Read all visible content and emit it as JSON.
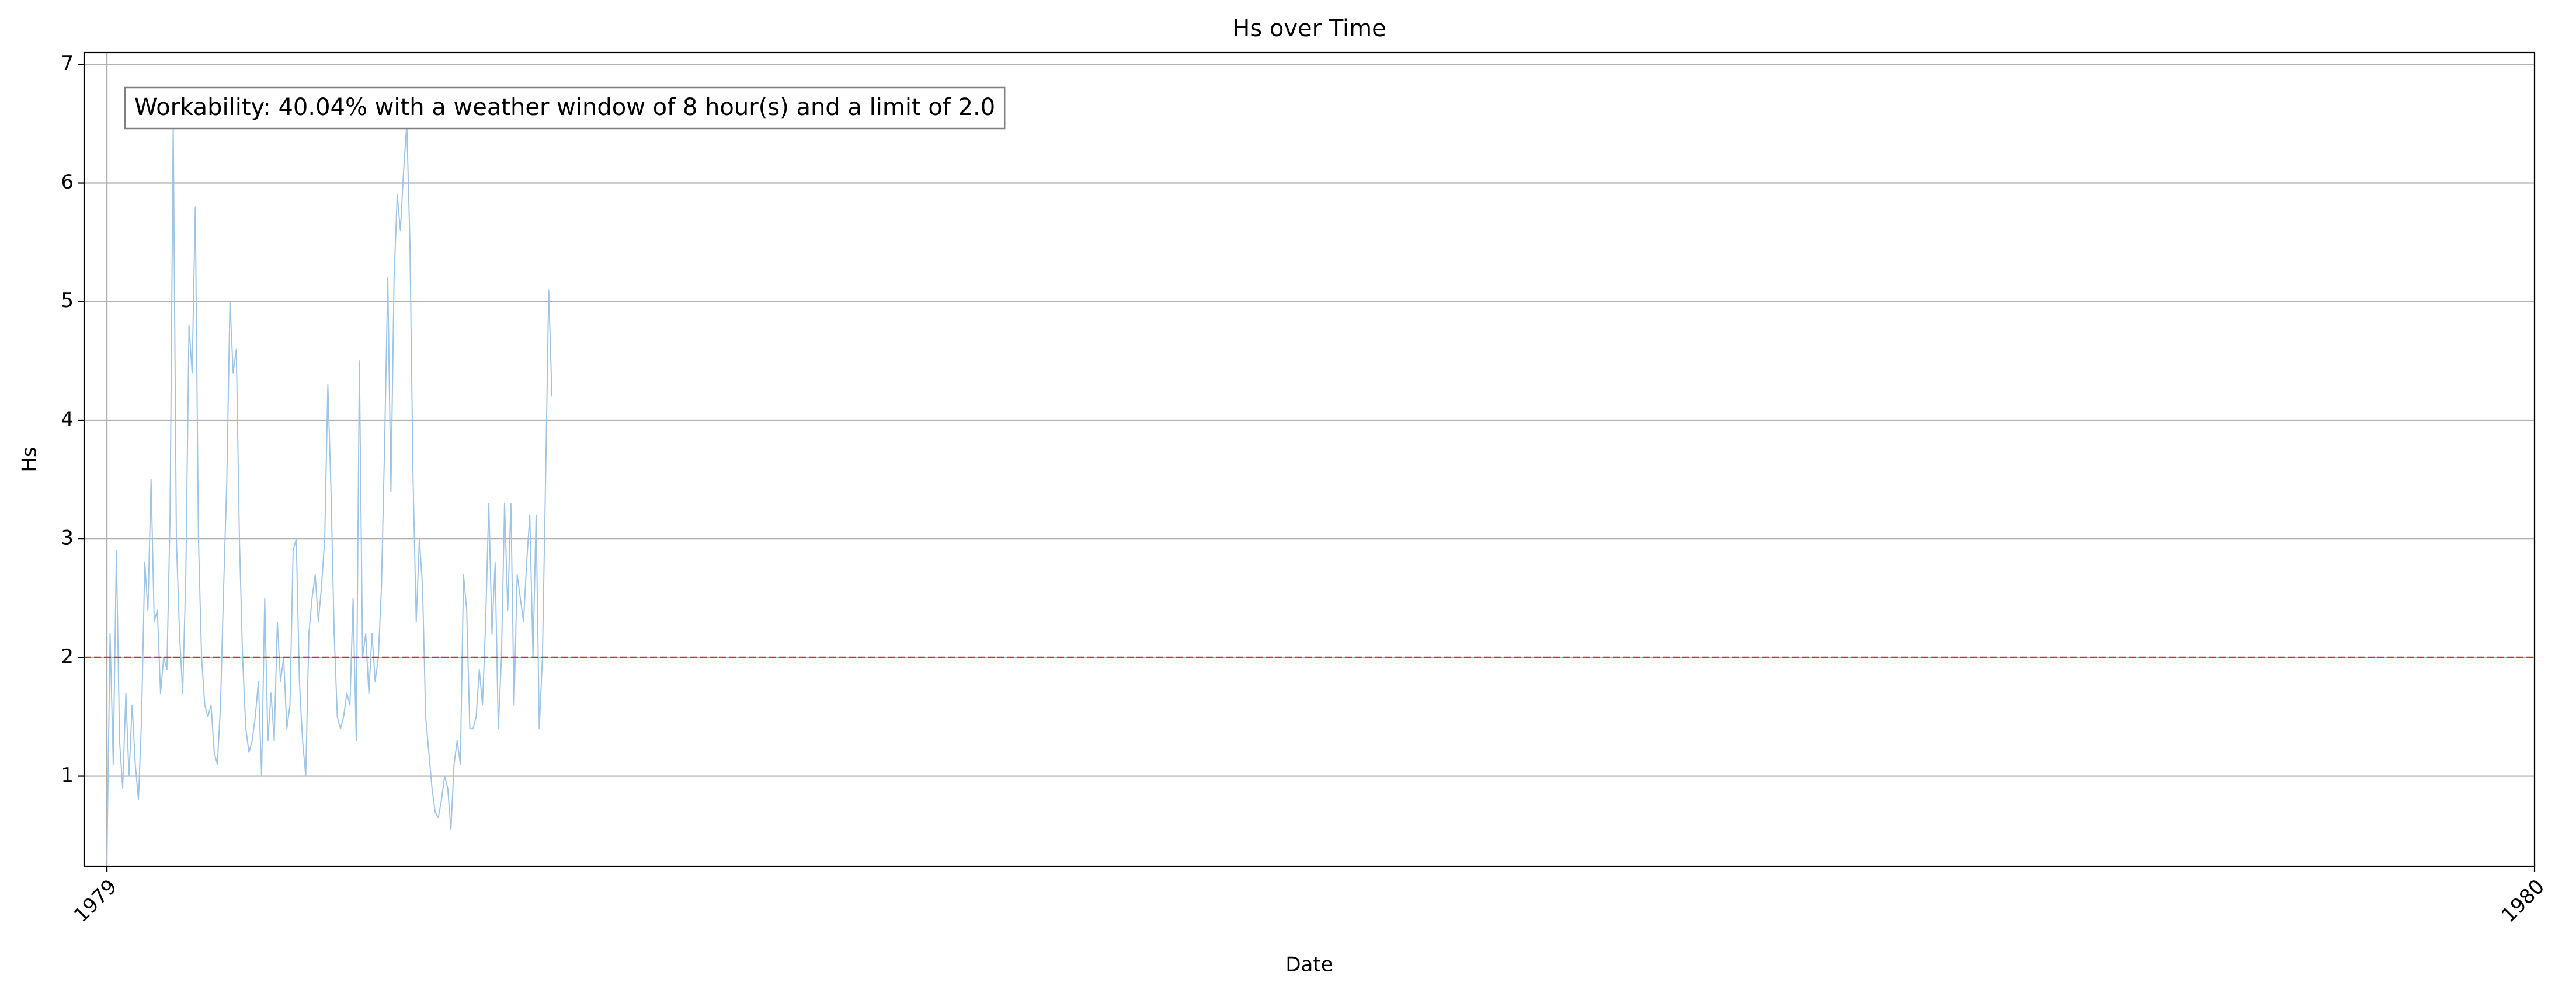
{
  "chart_data": {
    "type": "line",
    "title": "Hs over Time",
    "x_label": "Date",
    "y_label": "Hs",
    "annotation": "Workability: 40.04% with a weather window of 8 hour(s) and a limit of 2.0",
    "xlim": [
      1978.9906,
      1980
    ],
    "xticks": [
      1979,
      1980
    ],
    "ylim": [
      0.24,
      7.1
    ],
    "yticks": [
      1,
      2,
      3,
      4,
      5,
      6,
      7
    ],
    "grid": true,
    "hline": {
      "y": 2,
      "color": "#e8251f",
      "dashed": true
    },
    "x": [
      1979,
      1979.0013,
      1979.0026,
      1979.0039,
      1979.0052,
      1979.0065,
      1979.0078,
      1979.0091,
      1979.0104,
      1979.0117,
      1979.013,
      1979.0143,
      1979.0156,
      1979.0169,
      1979.0182,
      1979.0195,
      1979.0208,
      1979.0221,
      1979.0234,
      1979.0247,
      1979.026,
      1979.0273,
      1979.0286,
      1979.0299,
      1979.0312,
      1979.0325,
      1979.0338,
      1979.0351,
      1979.0364,
      1979.0377,
      1979.039,
      1979.0403,
      1979.0416,
      1979.0429,
      1979.0442,
      1979.0455,
      1979.0468,
      1979.0481,
      1979.0494,
      1979.0507,
      1979.052,
      1979.0533,
      1979.0546,
      1979.0559,
      1979.0572,
      1979.0585,
      1979.0598,
      1979.0611,
      1979.0624,
      1979.0637,
      1979.065,
      1979.0663,
      1979.0676,
      1979.0689,
      1979.0702,
      1979.0715,
      1979.0728,
      1979.0741,
      1979.0754,
      1979.0767,
      1979.078,
      1979.0793,
      1979.0806,
      1979.0819,
      1979.0832,
      1979.0845,
      1979.0858,
      1979.0871,
      1979.0884,
      1979.0897,
      1979.091,
      1979.0923,
      1979.0936,
      1979.0949,
      1979.0962,
      1979.0975,
      1979.0988,
      1979.1001,
      1979.1014,
      1979.1027,
      1979.104,
      1979.1053,
      1979.1066,
      1979.1079,
      1979.1092,
      1979.1105,
      1979.1118,
      1979.1131,
      1979.1144,
      1979.1157,
      1979.117,
      1979.1183,
      1979.1196,
      1979.1209,
      1979.1222,
      1979.1235,
      1979.1248,
      1979.1261,
      1979.1274,
      1979.1287,
      1979.13,
      1979.1313,
      1979.1326,
      1979.1339,
      1979.1352,
      1979.1365,
      1979.1378,
      1979.1391,
      1979.1404,
      1979.1417,
      1979.143,
      1979.1443,
      1979.1456,
      1979.1469,
      1979.1482,
      1979.1495,
      1979.1508,
      1979.1521,
      1979.1534,
      1979.1547,
      1979.156,
      1979.1573,
      1979.1586,
      1979.1599,
      1979.1612,
      1979.1625,
      1979.1638,
      1979.1651,
      1979.1664,
      1979.1677,
      1979.169,
      1979.1703,
      1979.1716,
      1979.1729,
      1979.1742,
      1979.1755,
      1979.1768,
      1979.1781,
      1979.1794,
      1979.1807,
      1979.182,
      1979.1833
    ],
    "series": [
      {
        "color": "#9fc5e6",
        "values": [
          0.3,
          2.2,
          1.1,
          2.9,
          1.3,
          0.9,
          1.7,
          1.0,
          1.6,
          1.1,
          0.8,
          1.5,
          2.8,
          2.4,
          3.5,
          2.3,
          2.4,
          1.7,
          2.0,
          1.9,
          3.2,
          6.5,
          3.0,
          2.2,
          1.7,
          2.7,
          4.8,
          4.4,
          5.8,
          3.0,
          2.0,
          1.6,
          1.5,
          1.6,
          1.2,
          1.1,
          1.6,
          2.6,
          3.5,
          5.0,
          4.4,
          4.6,
          3.0,
          2.0,
          1.4,
          1.2,
          1.3,
          1.5,
          1.8,
          1.0,
          2.5,
          1.3,
          1.7,
          1.3,
          2.3,
          1.8,
          2.0,
          1.4,
          1.6,
          2.9,
          3.0,
          1.8,
          1.3,
          1.0,
          2.2,
          2.5,
          2.7,
          2.3,
          2.6,
          3.0,
          4.3,
          3.4,
          2.2,
          1.5,
          1.4,
          1.5,
          1.7,
          1.6,
          2.5,
          1.3,
          4.5,
          2.0,
          2.2,
          1.7,
          2.2,
          1.8,
          2.0,
          2.6,
          3.8,
          5.2,
          3.4,
          5.2,
          5.9,
          5.6,
          6.1,
          6.5,
          5.5,
          3.5,
          2.3,
          3.0,
          2.6,
          1.5,
          1.2,
          0.9,
          0.7,
          0.65,
          0.8,
          1.0,
          0.9,
          0.55,
          1.1,
          1.3,
          1.1,
          2.7,
          2.4,
          1.4,
          1.4,
          1.5,
          1.9,
          1.6,
          2.3,
          3.3,
          2.2,
          2.8,
          1.4,
          2.0,
          3.3,
          2.4,
          3.3,
          1.6,
          2.7,
          2.5,
          2.3,
          2.8,
          3.2,
          2.0,
          3.2,
          1.4,
          2.0,
          3.5,
          5.1,
          4.2
        ]
      }
    ]
  }
}
